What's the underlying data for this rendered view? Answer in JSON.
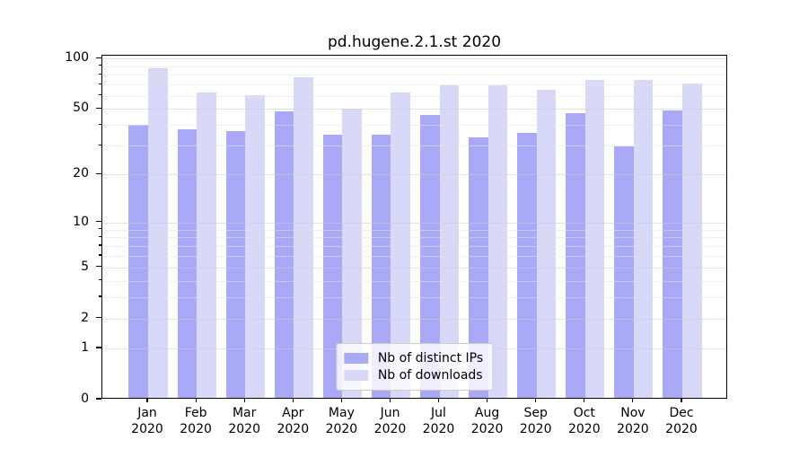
{
  "title": "pd.hugene.2.1.st 2020",
  "chart_data": {
    "type": "bar",
    "title": "pd.hugene.2.1.st 2020",
    "categories": [
      "Jan",
      "Feb",
      "Mar",
      "Apr",
      "May",
      "Jun",
      "Jul",
      "Aug",
      "Sep",
      "Oct",
      "Nov",
      "Dec"
    ],
    "year_label": "2020",
    "series": [
      {
        "name": "Nb of distinct IPs",
        "color": "#a9a9f8",
        "values": [
          39,
          37,
          36,
          47,
          34,
          34,
          45,
          33,
          35,
          46,
          29,
          48
        ]
      },
      {
        "name": "Nb of downloads",
        "color": "#d8d8f8",
        "values": [
          86,
          61,
          59,
          76,
          49,
          61,
          68,
          68,
          64,
          73,
          73,
          69
        ]
      }
    ],
    "yscale": "log1p",
    "ylim": [
      0,
      104
    ],
    "y_major_ticks": [
      0,
      1,
      2,
      5,
      10,
      20,
      50,
      100
    ],
    "y_minor_ticks": [
      3,
      4,
      6,
      7,
      8,
      9,
      30,
      40,
      60,
      70,
      80,
      90
    ],
    "grid": true,
    "legend_position": "lower center",
    "xlabel": "",
    "ylabel": ""
  },
  "legend": {
    "items": [
      {
        "label": "Nb of distinct IPs",
        "color": "#a9a9f8"
      },
      {
        "label": "Nb of downloads",
        "color": "#d8d8f8"
      }
    ]
  }
}
